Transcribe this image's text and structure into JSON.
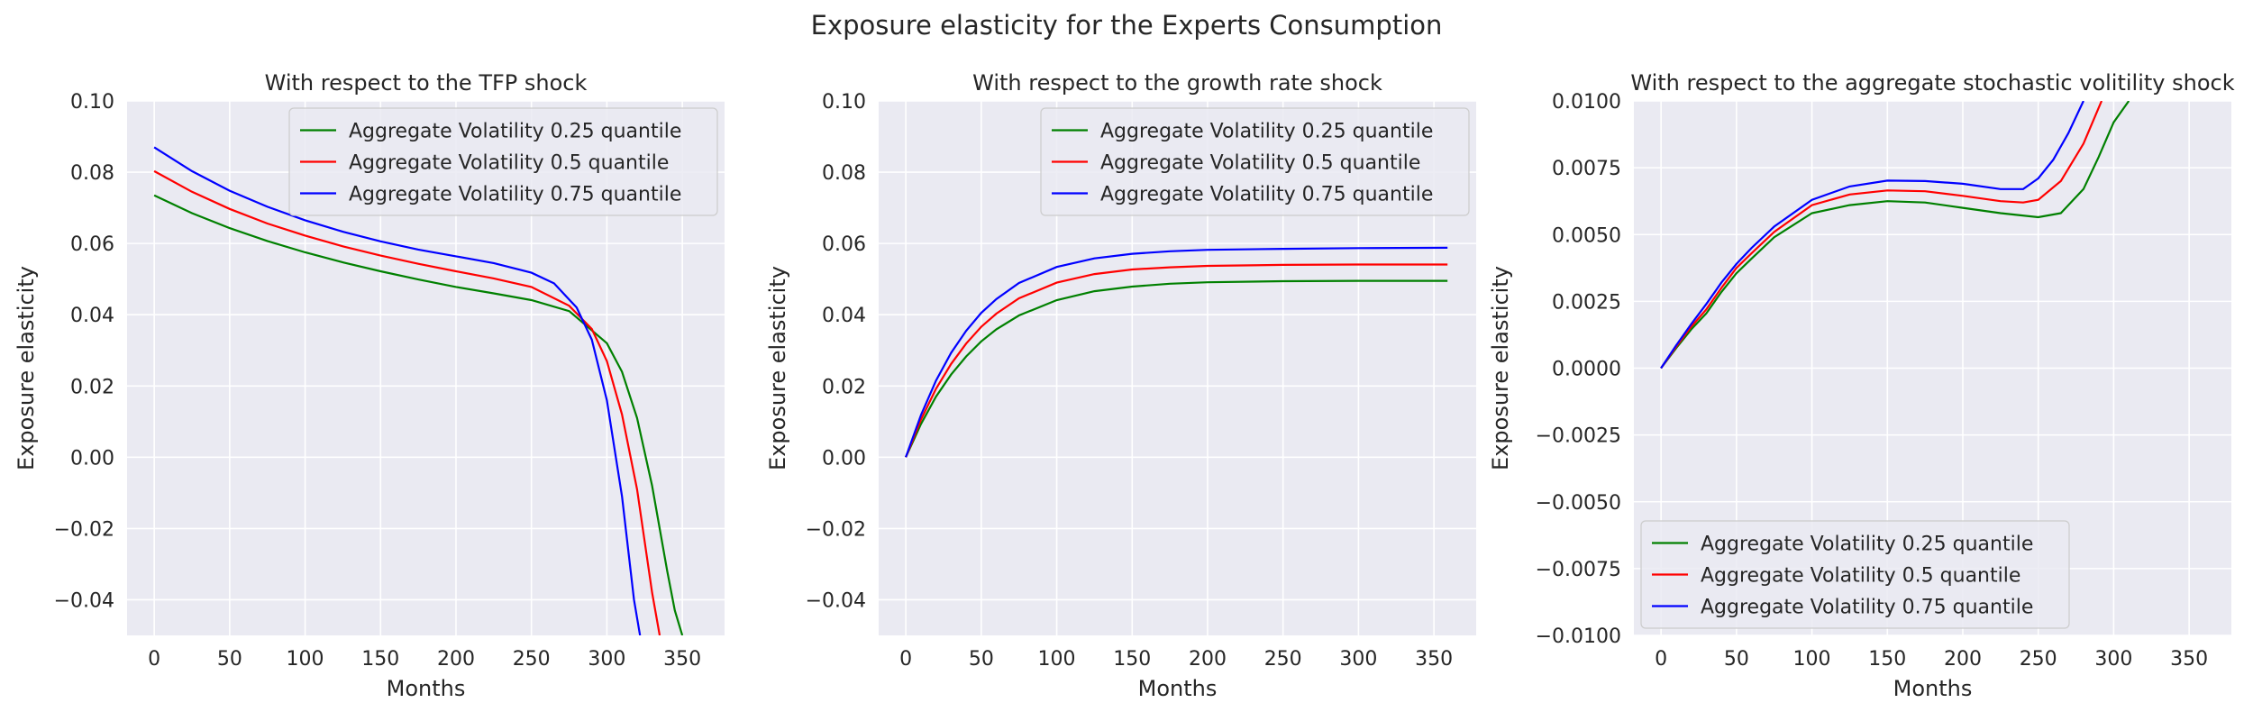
{
  "figure": {
    "title": "Exposure elasticity for the Experts Consumption"
  },
  "colors": {
    "background": "#ffffff",
    "plot_background": "#eaeaf2",
    "grid": "#ffffff",
    "series": [
      "#008000",
      "#ff0000",
      "#0000ff"
    ]
  },
  "chart_data": [
    {
      "type": "line",
      "title": "With respect to the TFP shock",
      "xlabel": "Months",
      "ylabel": "Exposure elasticity",
      "xlim": [
        -18,
        378
      ],
      "ylim": [
        -0.05,
        0.1
      ],
      "xticks": [
        0,
        50,
        100,
        150,
        200,
        250,
        300,
        350
      ],
      "xtick_labels": [
        "0",
        "50",
        "100",
        "150",
        "200",
        "250",
        "300",
        "350"
      ],
      "yticks": [
        -0.04,
        -0.02,
        0.0,
        0.02,
        0.04,
        0.06,
        0.08,
        0.1
      ],
      "ytick_labels": [
        "−0.04",
        "−0.02",
        "0.00",
        "0.02",
        "0.04",
        "0.06",
        "0.08",
        "0.10"
      ],
      "grid": true,
      "legend": "top-right",
      "series": [
        {
          "name": "Aggregate Volatility 0.25 quantile",
          "color": "#008000",
          "x": [
            0,
            25,
            50,
            75,
            100,
            125,
            150,
            175,
            200,
            225,
            250,
            275,
            300,
            310,
            320,
            330,
            340,
            345,
            350
          ],
          "y": [
            0.0735,
            0.0685,
            0.0643,
            0.0607,
            0.0575,
            0.0547,
            0.0522,
            0.0499,
            0.0478,
            0.046,
            0.0441,
            0.041,
            0.032,
            0.024,
            0.011,
            -0.008,
            -0.032,
            -0.043,
            -0.05
          ]
        },
        {
          "name": "Aggregate Volatility 0.5 quantile",
          "color": "#ff0000",
          "x": [
            0,
            25,
            50,
            75,
            100,
            125,
            150,
            175,
            200,
            225,
            250,
            275,
            290,
            300,
            310,
            320,
            330,
            335
          ],
          "y": [
            0.0803,
            0.0745,
            0.0697,
            0.0656,
            0.0622,
            0.0592,
            0.0566,
            0.0543,
            0.0522,
            0.0502,
            0.0478,
            0.0425,
            0.036,
            0.027,
            0.012,
            -0.009,
            -0.038,
            -0.05
          ]
        },
        {
          "name": "Aggregate Volatility 0.75 quantile",
          "color": "#0000ff",
          "x": [
            0,
            25,
            50,
            75,
            100,
            125,
            150,
            175,
            200,
            225,
            250,
            265,
            280,
            290,
            300,
            310,
            318,
            322
          ],
          "y": [
            0.087,
            0.0803,
            0.0748,
            0.0703,
            0.0665,
            0.0633,
            0.0606,
            0.0583,
            0.0564,
            0.0545,
            0.0518,
            0.0488,
            0.042,
            0.033,
            0.016,
            -0.011,
            -0.04,
            -0.05
          ]
        }
      ]
    },
    {
      "type": "line",
      "title": "With respect to the growth rate shock",
      "xlabel": "Months",
      "ylabel": "Exposure elasticity",
      "xlim": [
        -18,
        378
      ],
      "ylim": [
        -0.05,
        0.1
      ],
      "xticks": [
        0,
        50,
        100,
        150,
        200,
        250,
        300,
        350
      ],
      "xtick_labels": [
        "0",
        "50",
        "100",
        "150",
        "200",
        "250",
        "300",
        "350"
      ],
      "yticks": [
        -0.04,
        -0.02,
        0.0,
        0.02,
        0.04,
        0.06,
        0.08,
        0.1
      ],
      "ytick_labels": [
        "−0.04",
        "−0.02",
        "0.00",
        "0.02",
        "0.04",
        "0.06",
        "0.08",
        "0.10"
      ],
      "grid": true,
      "legend": "top-right",
      "series": [
        {
          "name": "Aggregate Volatility 0.25 quantile",
          "color": "#008000",
          "x": [
            0,
            10,
            20,
            30,
            40,
            50,
            60,
            75,
            100,
            125,
            150,
            175,
            200,
            250,
            300,
            359
          ],
          "y": [
            0.0,
            0.0093,
            0.017,
            0.0232,
            0.0283,
            0.0325,
            0.0359,
            0.0398,
            0.0441,
            0.0466,
            0.0479,
            0.0487,
            0.0491,
            0.0494,
            0.0495,
            0.0495
          ]
        },
        {
          "name": "Aggregate Volatility 0.5 quantile",
          "color": "#ff0000",
          "x": [
            0,
            10,
            20,
            30,
            40,
            50,
            60,
            75,
            100,
            125,
            150,
            175,
            200,
            250,
            300,
            359
          ],
          "y": [
            0.0,
            0.0105,
            0.0192,
            0.0262,
            0.0319,
            0.0366,
            0.0403,
            0.0446,
            0.049,
            0.0514,
            0.0527,
            0.0533,
            0.0537,
            0.054,
            0.0541,
            0.0541
          ]
        },
        {
          "name": "Aggregate Volatility 0.75 quantile",
          "color": "#0000ff",
          "x": [
            0,
            10,
            20,
            30,
            40,
            50,
            60,
            75,
            100,
            125,
            150,
            175,
            200,
            250,
            300,
            359
          ],
          "y": [
            0.0,
            0.0118,
            0.0215,
            0.0293,
            0.0355,
            0.0405,
            0.0444,
            0.0489,
            0.0534,
            0.0558,
            0.0571,
            0.0578,
            0.0582,
            0.0585,
            0.0587,
            0.0588
          ]
        }
      ]
    },
    {
      "type": "line",
      "title": "With respect to the aggregate stochastic volitility shock",
      "xlabel": "Months",
      "ylabel": "Exposure elasticity",
      "xlim": [
        -18,
        378
      ],
      "ylim": [
        -0.01,
        0.01
      ],
      "xticks": [
        0,
        50,
        100,
        150,
        200,
        250,
        300,
        350
      ],
      "xtick_labels": [
        "0",
        "50",
        "100",
        "150",
        "200",
        "250",
        "300",
        "350"
      ],
      "yticks": [
        -0.01,
        -0.0075,
        -0.005,
        -0.0025,
        0.0,
        0.0025,
        0.005,
        0.0075,
        0.01
      ],
      "ytick_labels": [
        "−0.0100",
        "−0.0075",
        "−0.0050",
        "−0.0025",
        "0.0000",
        "0.0025",
        "0.0050",
        "0.0075",
        "0.0100"
      ],
      "grid": true,
      "legend": "bottom-left",
      "series": [
        {
          "name": "Aggregate Volatility 0.25 quantile",
          "color": "#008000",
          "x": [
            0,
            10,
            20,
            30,
            40,
            50,
            60,
            75,
            100,
            125,
            150,
            175,
            200,
            225,
            250,
            265,
            280,
            290,
            300,
            310
          ],
          "y": [
            0.0,
            0.00075,
            0.00145,
            0.00205,
            0.00285,
            0.00355,
            0.0041,
            0.0049,
            0.0058,
            0.0061,
            0.00625,
            0.0062,
            0.006,
            0.0058,
            0.00565,
            0.0058,
            0.0067,
            0.0079,
            0.0092,
            0.01
          ]
        },
        {
          "name": "Aggregate Volatility 0.5 quantile",
          "color": "#ff0000",
          "x": [
            0,
            10,
            20,
            30,
            40,
            50,
            60,
            75,
            100,
            125,
            150,
            175,
            200,
            225,
            240,
            250,
            265,
            280,
            292
          ],
          "y": [
            0.0,
            0.0008,
            0.00155,
            0.0022,
            0.003,
            0.00375,
            0.0043,
            0.0051,
            0.0061,
            0.0065,
            0.00665,
            0.00662,
            0.00645,
            0.00625,
            0.0062,
            0.0063,
            0.007,
            0.0084,
            0.01
          ]
        },
        {
          "name": "Aggregate Volatility 0.75 quantile",
          "color": "#0000ff",
          "x": [
            0,
            10,
            20,
            30,
            40,
            50,
            60,
            75,
            100,
            125,
            150,
            175,
            200,
            225,
            240,
            250,
            260,
            270,
            280
          ],
          "y": [
            0.0,
            0.00085,
            0.00165,
            0.0024,
            0.0032,
            0.0039,
            0.0045,
            0.0053,
            0.0063,
            0.0068,
            0.00702,
            0.007,
            0.0069,
            0.0067,
            0.0067,
            0.0071,
            0.0078,
            0.0088,
            0.01
          ]
        }
      ]
    }
  ]
}
